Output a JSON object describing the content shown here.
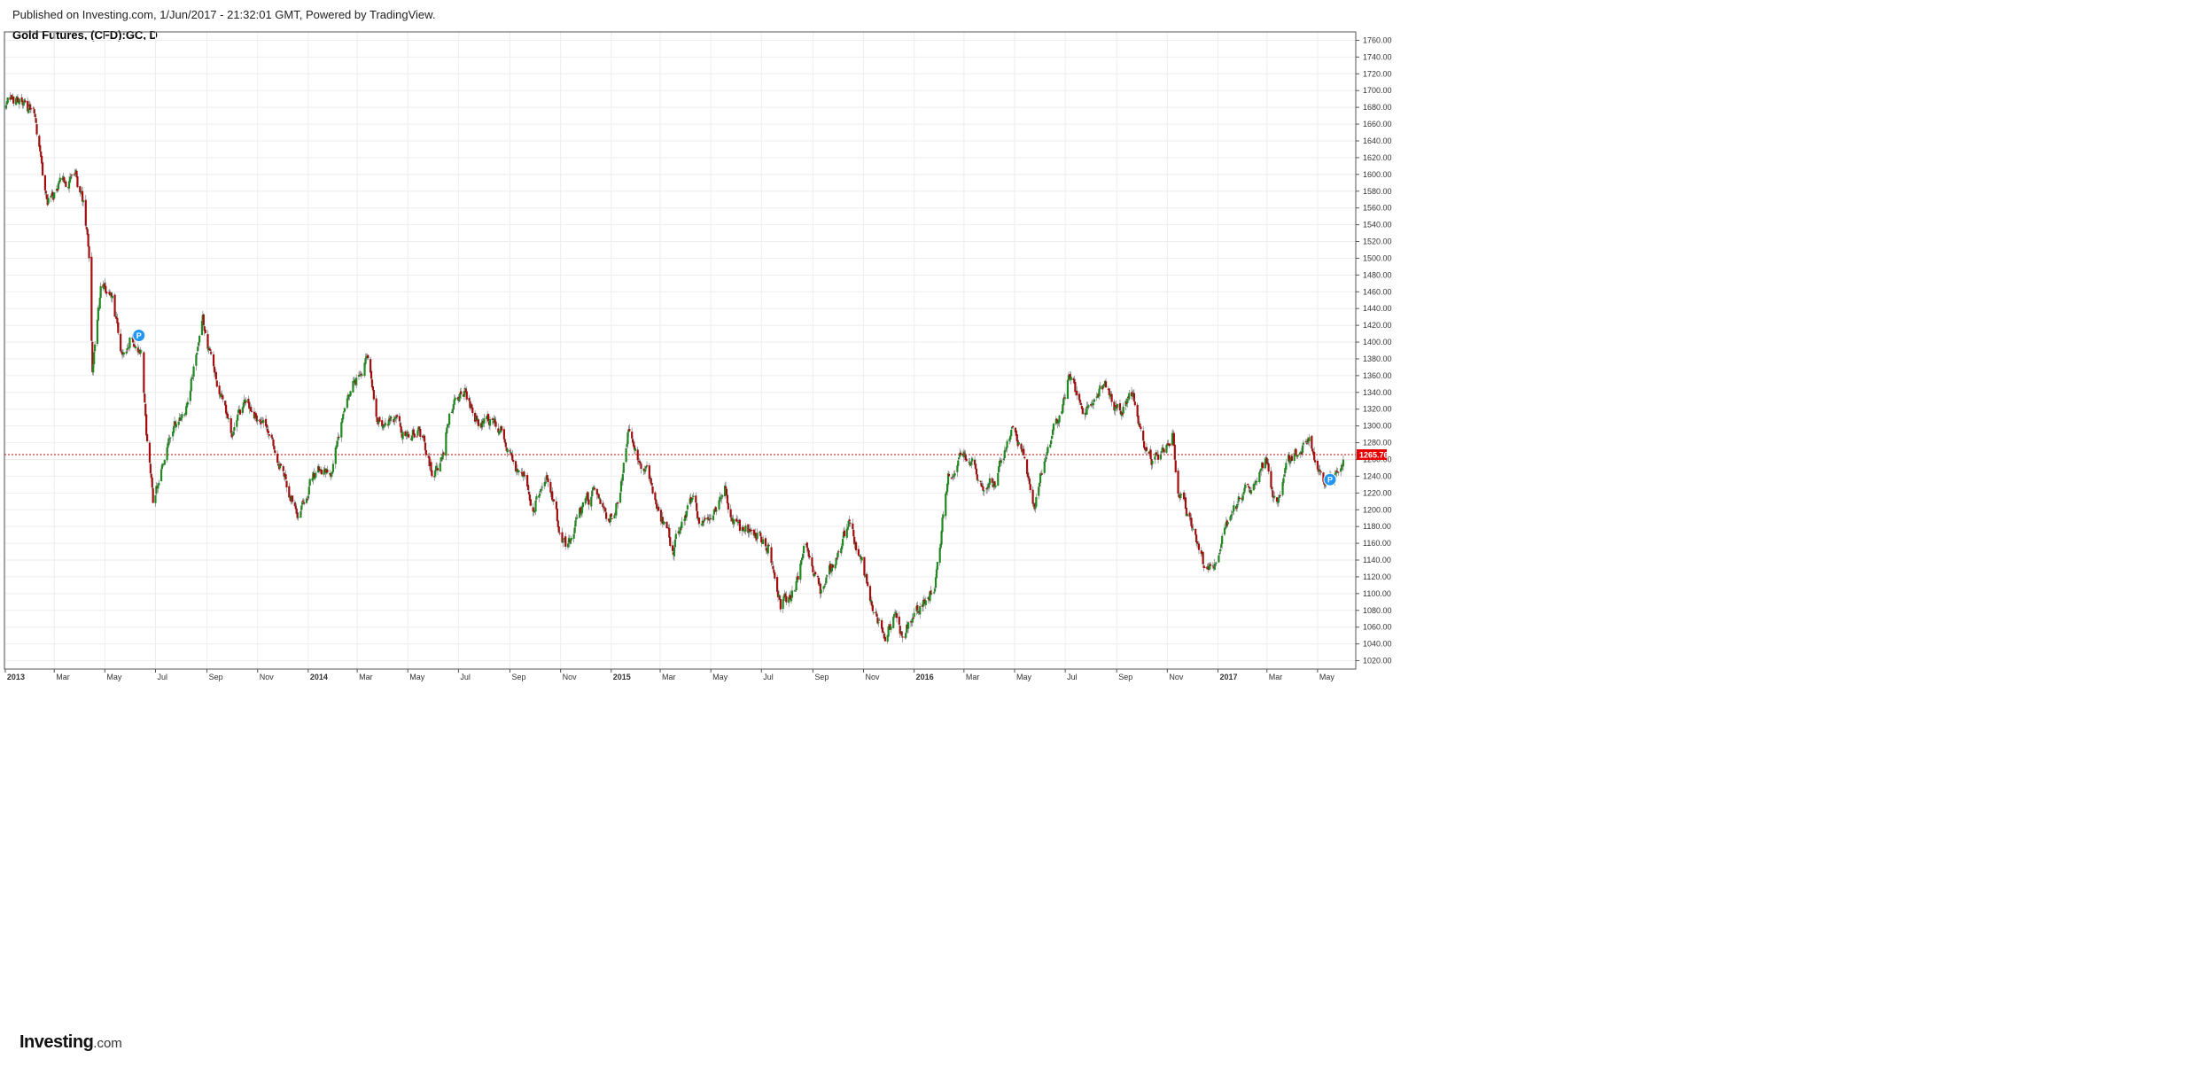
{
  "header": {
    "published": "Published on Investing.com, 1/Jun/2017 - 21:32:01 GMT, Powered by TradingView.",
    "symbol_title": "Gold Futures, (CFD):GC, D"
  },
  "logo": {
    "brand": "Investing",
    "suffix": ".com"
  },
  "colors": {
    "up": "#1f8a1f",
    "down": "#a30d0d",
    "price_line": "#e60000",
    "grid": "#eeeeee",
    "axis_text": "#333333",
    "pub_marker": "#2196f3"
  },
  "chart_data": {
    "type": "candlestick",
    "title": "Gold Futures, (CFD):GC, D",
    "interval": "D",
    "ylim": [
      1010,
      1770
    ],
    "y_ticks": [
      "1760.00",
      "1740.00",
      "1720.00",
      "1700.00",
      "1680.00",
      "1660.00",
      "1640.00",
      "1620.00",
      "1600.00",
      "1580.00",
      "1560.00",
      "1540.00",
      "1520.00",
      "1500.00",
      "1480.00",
      "1460.00",
      "1440.00",
      "1420.00",
      "1400.00",
      "1380.00",
      "1360.00",
      "1340.00",
      "1320.00",
      "1300.00",
      "1280.00",
      "1260.00",
      "1240.00",
      "1220.00",
      "1200.00",
      "1180.00",
      "1160.00",
      "1140.00",
      "1120.00",
      "1100.00",
      "1080.00",
      "1060.00",
      "1040.00",
      "1020.00"
    ],
    "x_ticks": [
      {
        "label": "2013",
        "date": "2013-01-01",
        "bold": true
      },
      {
        "label": "Mar",
        "date": "2013-03-01"
      },
      {
        "label": "May",
        "date": "2013-05-01"
      },
      {
        "label": "Jul",
        "date": "2013-07-01"
      },
      {
        "label": "Sep",
        "date": "2013-09-01"
      },
      {
        "label": "Nov",
        "date": "2013-11-01"
      },
      {
        "label": "2014",
        "date": "2014-01-01",
        "bold": true
      },
      {
        "label": "Mar",
        "date": "2014-03-01"
      },
      {
        "label": "May",
        "date": "2014-05-01"
      },
      {
        "label": "Jul",
        "date": "2014-07-01"
      },
      {
        "label": "Sep",
        "date": "2014-09-01"
      },
      {
        "label": "Nov",
        "date": "2014-11-01"
      },
      {
        "label": "2015",
        "date": "2015-01-01",
        "bold": true
      },
      {
        "label": "Mar",
        "date": "2015-03-01"
      },
      {
        "label": "May",
        "date": "2015-05-01"
      },
      {
        "label": "Jul",
        "date": "2015-07-01"
      },
      {
        "label": "Sep",
        "date": "2015-09-01"
      },
      {
        "label": "Nov",
        "date": "2015-11-01"
      },
      {
        "label": "2016",
        "date": "2016-01-01",
        "bold": true
      },
      {
        "label": "Mar",
        "date": "2016-03-01"
      },
      {
        "label": "May",
        "date": "2016-05-01"
      },
      {
        "label": "Jul",
        "date": "2016-07-01"
      },
      {
        "label": "Sep",
        "date": "2016-09-01"
      },
      {
        "label": "Nov",
        "date": "2016-11-01"
      },
      {
        "label": "2017",
        "date": "2017-01-01",
        "bold": true
      },
      {
        "label": "Mar",
        "date": "2017-03-01"
      },
      {
        "label": "May",
        "date": "2017-05-01"
      }
    ],
    "x_range": [
      "2012-12-31",
      "2017-06-16"
    ],
    "current_price": 1265.76,
    "current_price_label": "1265.76",
    "price_path": [
      [
        "2013-01-02",
        1680
      ],
      [
        "2013-01-18",
        1690
      ],
      [
        "2013-02-05",
        1670
      ],
      [
        "2013-02-20",
        1565
      ],
      [
        "2013-03-10",
        1590
      ],
      [
        "2013-03-28",
        1595
      ],
      [
        "2013-04-05",
        1560
      ],
      [
        "2013-04-12",
        1500
      ],
      [
        "2013-04-16",
        1370
      ],
      [
        "2013-04-26",
        1460
      ],
      [
        "2013-05-10",
        1455
      ],
      [
        "2013-05-20",
        1380
      ],
      [
        "2013-06-03",
        1410
      ],
      [
        "2013-06-14",
        1385
      ],
      [
        "2013-06-20",
        1290
      ],
      [
        "2013-06-28",
        1210
      ],
      [
        "2013-07-10",
        1260
      ],
      [
        "2013-07-22",
        1290
      ],
      [
        "2013-08-05",
        1320
      ],
      [
        "2013-08-27",
        1420
      ],
      [
        "2013-09-10",
        1365
      ],
      [
        "2013-09-20",
        1330
      ],
      [
        "2013-10-01",
        1290
      ],
      [
        "2013-10-18",
        1325
      ],
      [
        "2013-11-01",
        1310
      ],
      [
        "2013-11-15",
        1285
      ],
      [
        "2013-12-01",
        1245
      ],
      [
        "2013-12-20",
        1200
      ],
      [
        "2014-01-10",
        1245
      ],
      [
        "2014-01-30",
        1255
      ],
      [
        "2014-02-15",
        1320
      ],
      [
        "2014-03-14",
        1385
      ],
      [
        "2014-03-25",
        1310
      ],
      [
        "2014-04-10",
        1305
      ],
      [
        "2014-04-30",
        1290
      ],
      [
        "2014-05-15",
        1295
      ],
      [
        "2014-05-30",
        1250
      ],
      [
        "2014-06-10",
        1255
      ],
      [
        "2014-06-20",
        1315
      ],
      [
        "2014-07-10",
        1340
      ],
      [
        "2014-07-25",
        1305
      ],
      [
        "2014-08-10",
        1310
      ],
      [
        "2014-08-28",
        1285
      ],
      [
        "2014-09-10",
        1250
      ],
      [
        "2014-09-30",
        1210
      ],
      [
        "2014-10-15",
        1245
      ],
      [
        "2014-10-31",
        1170
      ],
      [
        "2014-11-07",
        1150
      ],
      [
        "2014-11-25",
        1195
      ],
      [
        "2014-12-10",
        1215
      ],
      [
        "2014-12-30",
        1185
      ],
      [
        "2015-01-10",
        1220
      ],
      [
        "2015-01-22",
        1300
      ],
      [
        "2015-02-05",
        1260
      ],
      [
        "2015-02-25",
        1210
      ],
      [
        "2015-03-17",
        1150
      ],
      [
        "2015-04-05",
        1210
      ],
      [
        "2015-04-25",
        1180
      ],
      [
        "2015-05-18",
        1225
      ],
      [
        "2015-06-05",
        1170
      ],
      [
        "2015-06-25",
        1175
      ],
      [
        "2015-07-10",
        1160
      ],
      [
        "2015-07-24",
        1085
      ],
      [
        "2015-08-10",
        1110
      ],
      [
        "2015-08-24",
        1160
      ],
      [
        "2015-09-10",
        1105
      ],
      [
        "2015-09-25",
        1135
      ],
      [
        "2015-10-14",
        1185
      ],
      [
        "2015-10-30",
        1140
      ],
      [
        "2015-11-10",
        1085
      ],
      [
        "2015-11-27",
        1055
      ],
      [
        "2015-12-10",
        1075
      ],
      [
        "2015-12-17",
        1050
      ],
      [
        "2016-01-05",
        1085
      ],
      [
        "2016-01-25",
        1110
      ],
      [
        "2016-02-11",
        1240
      ],
      [
        "2016-02-25",
        1255
      ],
      [
        "2016-03-10",
        1265
      ],
      [
        "2016-03-25",
        1215
      ],
      [
        "2016-04-10",
        1240
      ],
      [
        "2016-04-28",
        1290
      ],
      [
        "2016-05-10",
        1270
      ],
      [
        "2016-05-25",
        1210
      ],
      [
        "2016-06-10",
        1275
      ],
      [
        "2016-06-27",
        1320
      ],
      [
        "2016-07-06",
        1365
      ],
      [
        "2016-07-22",
        1320
      ],
      [
        "2016-08-05",
        1340
      ],
      [
        "2016-08-18",
        1350
      ],
      [
        "2016-09-05",
        1315
      ],
      [
        "2016-09-20",
        1335
      ],
      [
        "2016-10-04",
        1265
      ],
      [
        "2016-10-14",
        1255
      ],
      [
        "2016-10-28",
        1275
      ],
      [
        "2016-11-08",
        1300
      ],
      [
        "2016-11-12",
        1225
      ],
      [
        "2016-11-28",
        1185
      ],
      [
        "2016-12-15",
        1130
      ],
      [
        "2016-12-28",
        1145
      ],
      [
        "2017-01-15",
        1195
      ],
      [
        "2017-01-30",
        1210
      ],
      [
        "2017-02-15",
        1230
      ],
      [
        "2017-02-28",
        1255
      ],
      [
        "2017-03-14",
        1200
      ],
      [
        "2017-03-27",
        1255
      ],
      [
        "2017-04-12",
        1275
      ],
      [
        "2017-04-20",
        1290
      ],
      [
        "2017-05-09",
        1220
      ],
      [
        "2017-05-22",
        1255
      ],
      [
        "2017-06-01",
        1268
      ]
    ],
    "publication_markers": [
      {
        "label": "P",
        "date": "2013-06-11",
        "price": 1408
      },
      {
        "label": "P",
        "date": "2017-05-16",
        "price": 1236
      }
    ],
    "grid": true,
    "y_axis_position": "right",
    "legend": "none"
  }
}
